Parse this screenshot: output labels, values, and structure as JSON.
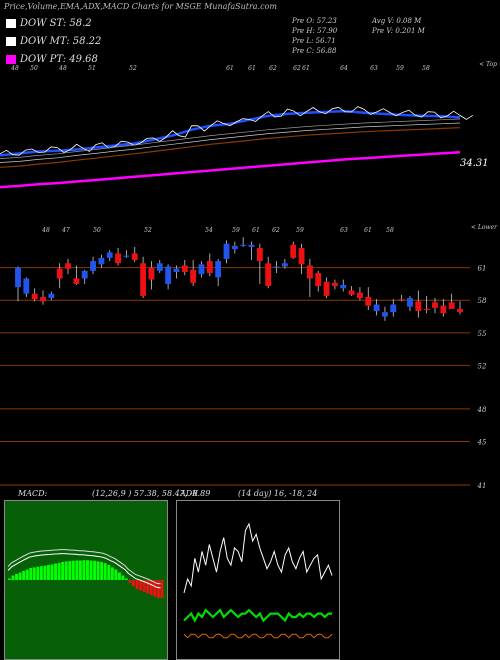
{
  "header": {
    "title": "Price,Volume,EMA,ADX,MACD Charts for MSGE MunafaSutra.com"
  },
  "legend": [
    {
      "label": "DOW ST: 58.2",
      "color": "#ffffff"
    },
    {
      "label": "DOW MT: 58.22",
      "color": "#ffffff"
    },
    {
      "label": "DOW PT: 49.68",
      "color": "#ff00ff"
    }
  ],
  "stats": {
    "open": "Pre   O: 57.23",
    "high": "Pre   H: 57.90",
    "low": "Pre   L: 56.71",
    "close": "Pre   C: 56.88",
    "avg_vol": "Avg V: 0.08 M",
    "pre_vol": "Pre   V: 0.201 M"
  },
  "ema_panel": {
    "top_label": "< Top",
    "last_value": "34.31",
    "date_labels": [
      "48",
      "50",
      "48",
      "51",
      "52",
      "61",
      "61",
      "62",
      "62",
      "61",
      "64",
      "63",
      "59",
      "58"
    ]
  },
  "candle_panel": {
    "top_label": "< Lower",
    "date_labels": [
      "48",
      "47",
      "50",
      "52",
      "54",
      "59",
      "61",
      "62",
      "59",
      "63",
      "61",
      "58"
    ],
    "price_levels": [
      "61",
      "58",
      "55",
      "52",
      "48",
      "45",
      "41"
    ]
  },
  "macd": {
    "label": "MACD:",
    "params": "(12,26,9 ) 57.38, 58.47, -0.89"
  },
  "adx": {
    "label": "ADX",
    "params": "(14 day) 16, -18, 24"
  },
  "colors": {
    "up": "#2255ee",
    "down": "#ee1111",
    "ema_blue": "#1f4fff",
    "pt_magenta": "#ff00ff",
    "level_line": "#8a3a00",
    "macd_green": "#00ff00",
    "adx_green": "#00dd00",
    "adx_orange": "#dd6600"
  },
  "chart_data": [
    {
      "type": "line",
      "title": "",
      "series": [
        {
          "values": [
            48,
            48.5,
            49,
            49.2,
            49.5,
            50,
            50.5,
            51,
            52,
            53,
            54.5,
            55.5,
            56,
            57,
            58,
            58.5,
            58.8,
            59,
            59.2,
            58.8,
            58.5,
            58.2,
            58,
            57.9,
            57.6
          ]
        },
        {
          "values": [
            45,
            45.3,
            45.8,
            46.2,
            46.8,
            47.3,
            47.9,
            48.4,
            49,
            49.6,
            50.2,
            50.8,
            51.3,
            51.8,
            52.3,
            52.7,
            53.1,
            53.4,
            53.7,
            54,
            54.2,
            54.4,
            54.6,
            54.8,
            55
          ]
        },
        {
          "values": [
            40,
            40.3,
            40.7,
            41,
            41.4,
            41.8,
            42.2,
            42.6,
            43,
            43.4,
            43.8,
            44.2,
            44.6,
            45,
            45.4,
            45.8,
            46.2,
            46.6,
            47,
            47.3,
            47.6,
            47.9,
            48.2,
            48.5,
            48.8
          ]
        }
      ]
    },
    {
      "type": "candlestick",
      "title": "",
      "ylim": [
        41,
        64
      ],
      "ohlc": [
        [
          59.2,
          61.1,
          57.9,
          61.0
        ],
        [
          58.6,
          60.1,
          58.3,
          60.0
        ],
        [
          58.6,
          59.1,
          57.9,
          58.1
        ],
        [
          58.3,
          58.9,
          57.6,
          57.9
        ],
        [
          58.2,
          58.8,
          58.0,
          58.6
        ],
        [
          60.9,
          61.4,
          59.1,
          60.0
        ],
        [
          61.4,
          61.8,
          60.4,
          60.9
        ],
        [
          60.0,
          61.2,
          59.4,
          59.5
        ],
        [
          60.0,
          60.8,
          59.5,
          60.7
        ],
        [
          60.7,
          62.0,
          60.4,
          61.6
        ],
        [
          61.3,
          62.2,
          61.0,
          61.9
        ],
        [
          61.9,
          62.6,
          61.6,
          62.4
        ],
        [
          62.3,
          62.8,
          61.2,
          61.4
        ],
        [
          62.0,
          62.6,
          61.9,
          62.1
        ],
        [
          62.3,
          62.9,
          61.5,
          61.7
        ],
        [
          61.4,
          62.0,
          58.2,
          58.4
        ],
        [
          61.0,
          61.6,
          59.0,
          59.9
        ],
        [
          60.7,
          61.7,
          60.5,
          61.4
        ],
        [
          59.5,
          61.3,
          59.0,
          61.1
        ],
        [
          60.6,
          61.2,
          60.0,
          60.9
        ],
        [
          61.2,
          61.7,
          60.3,
          60.6
        ],
        [
          60.8,
          61.7,
          59.3,
          59.6
        ],
        [
          60.4,
          61.6,
          60.1,
          61.3
        ],
        [
          61.6,
          62.3,
          60.2,
          60.5
        ],
        [
          60.1,
          61.8,
          59.3,
          61.6
        ],
        [
          61.8,
          63.5,
          61.4,
          63.2
        ],
        [
          62.7,
          63.4,
          62.3,
          63.0
        ],
        [
          63.0,
          63.8,
          62.9,
          63.1
        ],
        [
          62.9,
          63.4,
          61.7,
          63.1
        ],
        [
          62.8,
          63.2,
          59.5,
          61.6
        ],
        [
          61.4,
          62.0,
          59.1,
          59.3
        ],
        [
          61.0,
          61.6,
          60.5,
          61.1
        ],
        [
          61.1,
          61.8,
          60.9,
          61.4
        ],
        [
          63.1,
          63.4,
          61.8,
          61.9
        ],
        [
          62.8,
          63.2,
          60.4,
          61.3
        ],
        [
          61.2,
          61.8,
          58.3,
          60.0
        ],
        [
          60.5,
          60.7,
          58.8,
          59.3
        ],
        [
          59.7,
          60.1,
          58.2,
          58.4
        ],
        [
          59.6,
          59.9,
          59.0,
          59.3
        ],
        [
          59.1,
          59.9,
          58.8,
          59.4
        ],
        [
          58.9,
          59.3,
          58.4,
          58.5
        ],
        [
          58.7,
          59.2,
          58.0,
          58.2
        ],
        [
          58.3,
          59.2,
          57.1,
          57.5
        ],
        [
          57.0,
          58.1,
          56.6,
          57.6
        ],
        [
          56.5,
          57.4,
          56.1,
          56.9
        ],
        [
          56.9,
          58.1,
          56.5,
          57.6
        ],
        [
          58.1,
          58.5,
          57.9,
          58.0
        ],
        [
          57.4,
          58.4,
          57.0,
          58.2
        ],
        [
          57.9,
          58.9,
          56.4,
          57.0
        ],
        [
          57.2,
          58.4,
          56.8,
          57.1
        ],
        [
          57.8,
          58.2,
          56.8,
          57.3
        ],
        [
          57.5,
          58.1,
          56.5,
          56.8
        ],
        [
          57.8,
          58.6,
          57.4,
          57.2
        ],
        [
          57.2,
          57.9,
          56.7,
          56.9
        ]
      ]
    },
    {
      "type": "bar",
      "title": "MACD",
      "values": [
        0.05,
        0.15,
        0.2,
        0.25,
        0.3,
        0.35,
        0.4,
        0.42,
        0.44,
        0.46,
        0.48,
        0.5,
        0.52,
        0.55,
        0.57,
        0.6,
        0.62,
        0.63,
        0.64,
        0.65,
        0.65,
        0.66,
        0.66,
        0.65,
        0.64,
        0.62,
        0.6,
        0.56,
        0.5,
        0.42,
        0.35,
        0.25,
        0.15,
        0.05,
        -0.1,
        -0.2,
        -0.3,
        -0.35,
        -0.4,
        -0.45,
        -0.5,
        -0.55,
        -0.6,
        -0.6
      ]
    },
    {
      "type": "line",
      "title": "ADX",
      "series": [
        {
          "values": [
            18,
            22,
            20,
            28,
            24,
            30,
            26,
            32,
            28,
            24,
            30,
            34,
            28,
            26,
            31,
            30,
            27,
            36,
            38,
            33,
            35,
            31,
            28,
            25,
            27,
            30,
            26,
            24,
            29,
            31,
            27,
            25,
            28,
            30,
            24,
            26,
            28,
            29,
            22,
            24,
            26,
            23
          ]
        },
        {
          "values": [
            10,
            11,
            12,
            10,
            12,
            11,
            13,
            12,
            11,
            12,
            13,
            11,
            12,
            13,
            12,
            11,
            12,
            12,
            13,
            12,
            11,
            12,
            10,
            11,
            12,
            12,
            12,
            11,
            10,
            12,
            11,
            11,
            12,
            11,
            12,
            12,
            11,
            12,
            12,
            11,
            12,
            12
          ]
        },
        {
          "values": [
            6,
            5,
            6,
            6,
            5,
            6,
            6,
            5,
            5,
            6,
            6,
            5,
            5,
            6,
            6,
            5,
            5,
            6,
            5,
            6,
            6,
            5,
            5,
            6,
            6,
            5,
            5,
            6,
            6,
            5,
            6,
            6,
            5,
            5,
            6,
            6,
            5,
            6,
            6,
            5,
            5,
            6
          ]
        }
      ]
    }
  ]
}
